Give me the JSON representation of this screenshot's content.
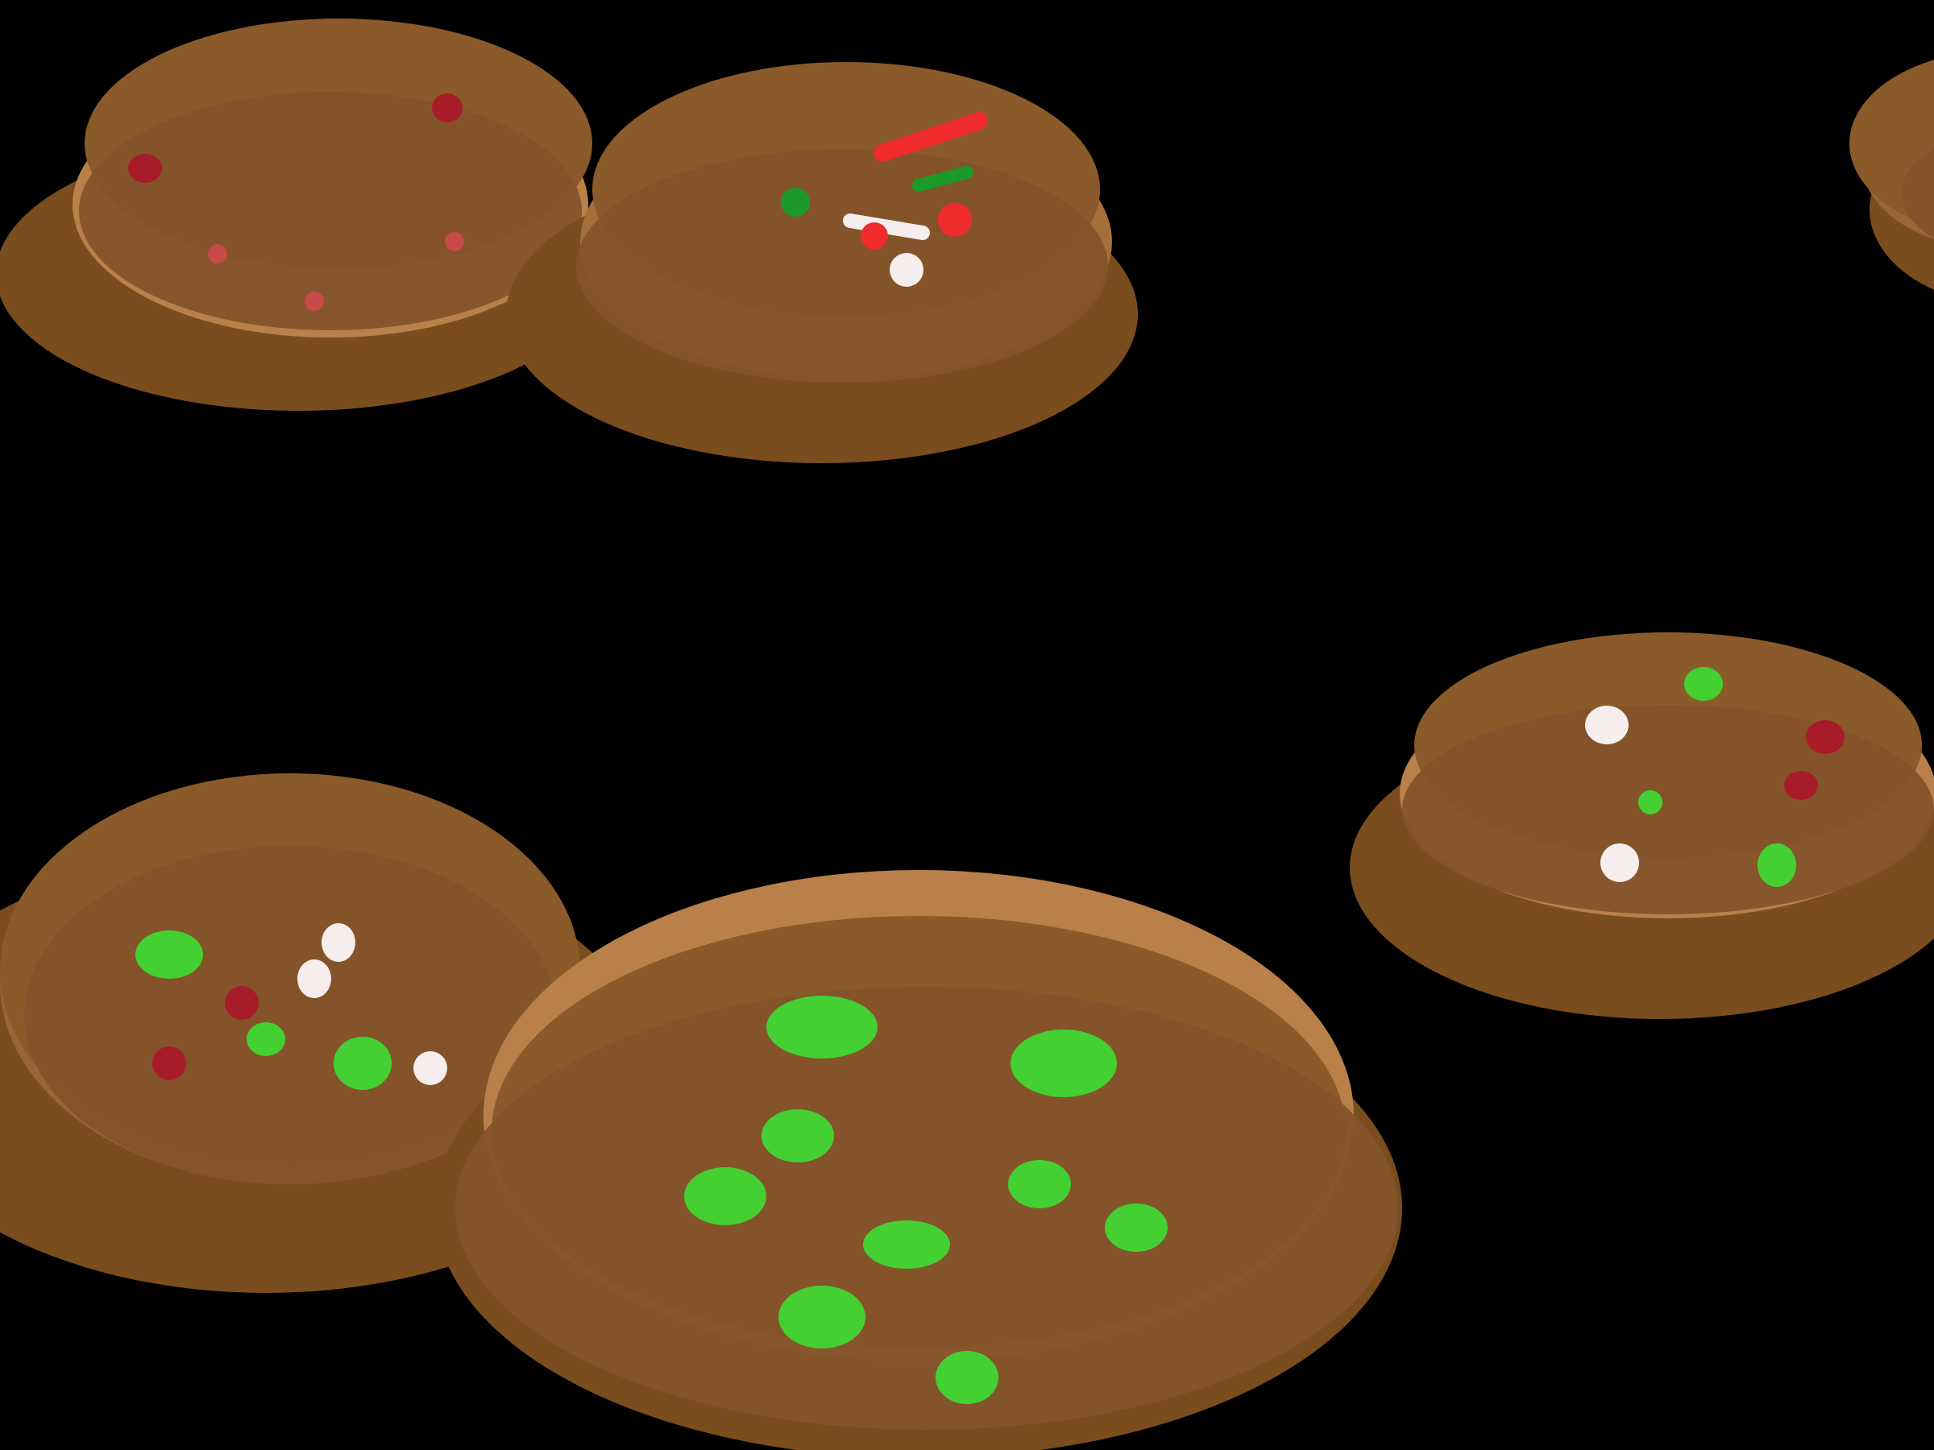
{
  "scene": {
    "background": "#000000",
    "subject": "cookies-with-sprinkles",
    "cookie_count": 6
  },
  "palette": {
    "cookie_base": "#7a4d1f",
    "cookie_top": "#8b5a2b",
    "cookie_rim": "#b9804a",
    "cookie_face": "#84532a",
    "sprinkle_bright_green": "#44d033",
    "sprinkle_dark_green": "#1b9a2a",
    "sprinkle_red": "#ef2b2b",
    "sprinkle_dark_red": "#a81c2a",
    "sprinkle_pink": "#c94a4a",
    "sprinkle_white": "#f6eded"
  },
  "cookies": [
    {
      "name": "cookie-top-left",
      "sprinkle_colors": [
        "dark-red",
        "pink"
      ]
    },
    {
      "name": "cookie-top-center",
      "sprinkle_colors": [
        "red",
        "dark-green",
        "white"
      ]
    },
    {
      "name": "cookie-top-right-partial",
      "sprinkle_colors": []
    },
    {
      "name": "cookie-right",
      "sprinkle_colors": [
        "bright-green",
        "white",
        "dark-red"
      ]
    },
    {
      "name": "cookie-bottom-left",
      "sprinkle_colors": [
        "bright-green",
        "white",
        "dark-red"
      ]
    },
    {
      "name": "cookie-bottom-center",
      "sprinkle_colors": [
        "bright-green"
      ]
    }
  ]
}
